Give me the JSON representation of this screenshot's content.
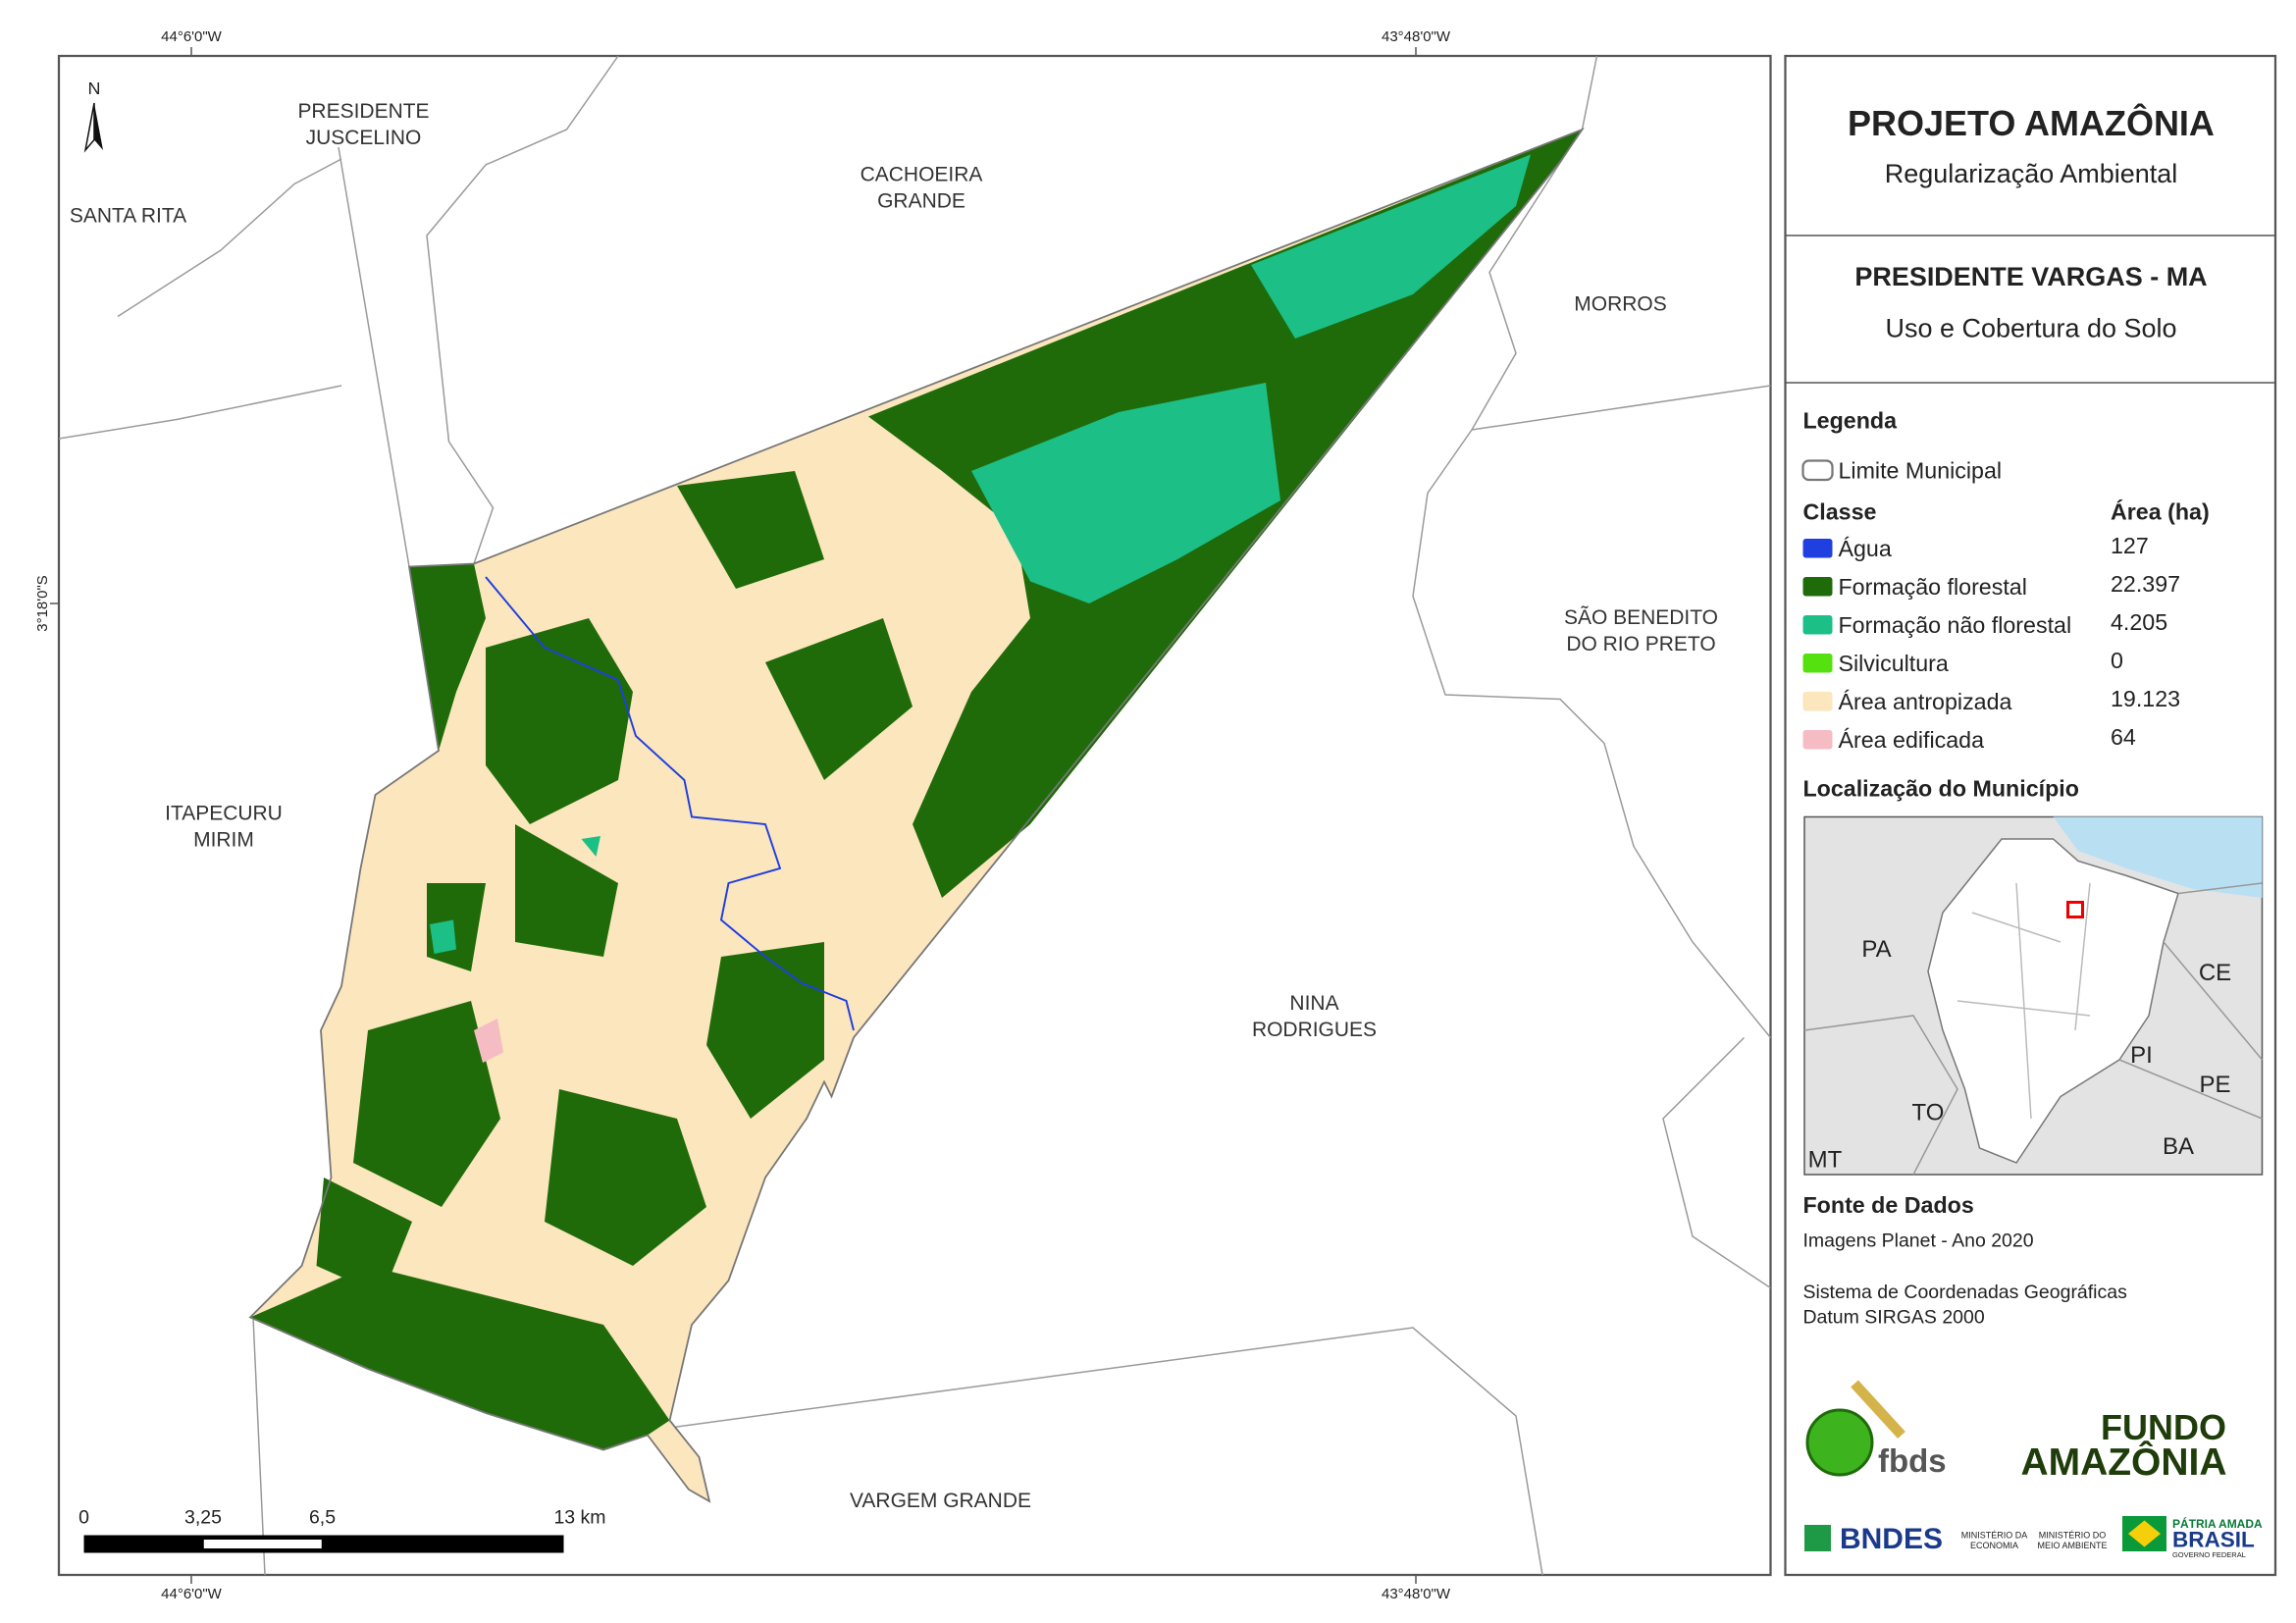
{
  "coordinates": {
    "top": [
      "44°6'0\"W",
      "43°48'0\"W"
    ],
    "bottom": [
      "44°6'0\"W",
      "43°48'0\"W"
    ],
    "left": [
      "3°18'0\"S"
    ]
  },
  "north_arrow": "N",
  "neighbors": [
    {
      "lines": [
        "PRESIDENTE",
        "JUSCELINO"
      ]
    },
    {
      "lines": [
        "SANTA RITA"
      ]
    },
    {
      "lines": [
        "CACHOEIRA",
        "GRANDE"
      ]
    },
    {
      "lines": [
        "MORROS"
      ]
    },
    {
      "lines": [
        "SÃO BENEDITO",
        "DO RIO PRETO"
      ]
    },
    {
      "lines": [
        "ITAPECURU",
        "MIRIM"
      ]
    },
    {
      "lines": [
        "NINA",
        "RODRIGUES"
      ]
    },
    {
      "lines": [
        "VARGEM GRANDE"
      ]
    }
  ],
  "scale_bar": {
    "labels": [
      "0",
      "3,25",
      "6,5",
      "13 km"
    ]
  },
  "header": {
    "title": "PROJETO AMAZÔNIA",
    "subtitle": "Regularização Ambiental"
  },
  "map_title": {
    "title": "PRESIDENTE VARGAS - MA",
    "subtitle": "Uso e Cobertura do Solo"
  },
  "legend": {
    "title": "Legenda",
    "boundary": "Limite Municipal",
    "class_header": "Classe",
    "area_header": "Área (ha)",
    "classes": [
      {
        "name": "Água",
        "area": "127",
        "color": "#1f3fe0"
      },
      {
        "name": "Formação florestal",
        "area": "22.397",
        "color": "#1f6b0a"
      },
      {
        "name": "Formação não florestal",
        "area": "4.205",
        "color": "#1cbf85"
      },
      {
        "name": "Silvicultura",
        "area": "0",
        "color": "#55e010"
      },
      {
        "name": "Área antropizada",
        "area": "19.123",
        "color": "#fbe6bd"
      },
      {
        "name": "Área edificada",
        "area": "64",
        "color": "#f6bcc4"
      }
    ]
  },
  "location": {
    "title": "Localização do Município",
    "states": [
      "PA",
      "CE",
      "PI",
      "PE",
      "TO",
      "BA",
      "MT"
    ]
  },
  "sources": {
    "title": "Fonte de Dados",
    "lines": [
      "Imagens Planet - Ano 2020",
      "Sistema de Coordenadas Geográficas",
      "Datum SIRGAS 2000"
    ]
  },
  "logos": {
    "fbds": "fbds",
    "fundo": "FUNDO",
    "amazonia": "AMAZÔNIA",
    "bndes": "BNDES",
    "min_economia": [
      "MINISTÉRIO DA",
      "ECONOMIA"
    ],
    "min_meio": [
      "MINISTÉRIO DO",
      "MEIO AMBIENTE"
    ],
    "patria": "PÁTRIA AMADA",
    "brasil": "BRASIL",
    "governo": "GOVERNO FEDERAL"
  }
}
